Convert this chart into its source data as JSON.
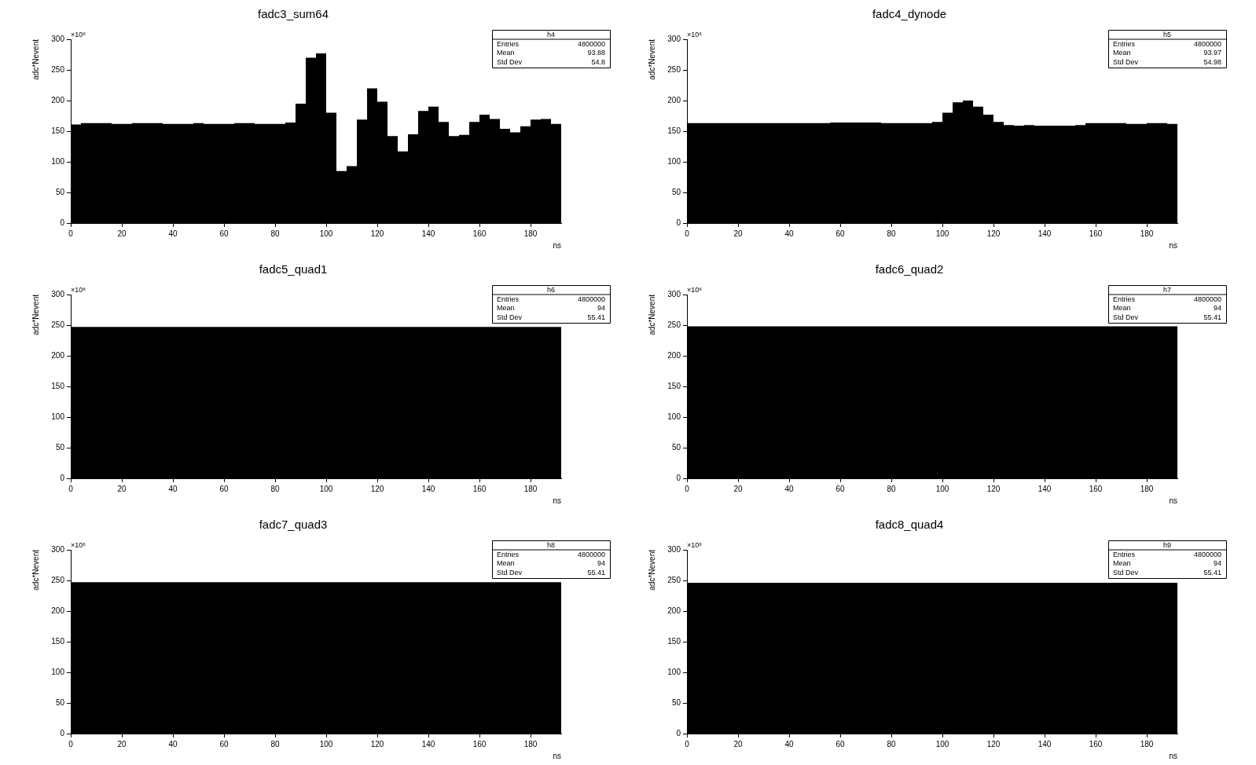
{
  "chart_data": [
    {
      "type": "histogram",
      "title": "fadc3_sum64",
      "xlabel": "ns",
      "ylabel": "adc*Nevent",
      "color": "#000000",
      "grid": false,
      "legend": false,
      "bins": [
        0,
        4,
        8,
        12,
        16,
        20,
        24,
        28,
        32,
        36,
        40,
        44,
        48,
        52,
        56,
        60,
        64,
        68,
        72,
        76,
        80,
        84,
        88,
        92,
        96,
        100,
        104,
        108,
        112,
        116,
        120,
        124,
        128,
        132,
        136,
        140,
        144,
        148,
        152,
        156,
        160,
        164,
        168,
        172,
        176,
        180,
        184,
        188,
        192
      ],
      "values": [
        161,
        163,
        163,
        163,
        162,
        162,
        163,
        163,
        163,
        162,
        162,
        162,
        163,
        162,
        162,
        162,
        163,
        163,
        162,
        162,
        162,
        164,
        195,
        270,
        277,
        180,
        85,
        93,
        169,
        220,
        198,
        142,
        117,
        145,
        183,
        190,
        165,
        142,
        144,
        165,
        177,
        170,
        154,
        148,
        158,
        169,
        170,
        162
      ],
      "xlim": [
        0,
        192
      ],
      "xticks": [
        0,
        20,
        40,
        60,
        80,
        100,
        120,
        140,
        160,
        180
      ],
      "ylim": [
        0,
        300
      ],
      "yticks": [
        0,
        50,
        100,
        150,
        200,
        250,
        300
      ],
      "annotations": [
        "×10⁶",
        "h4",
        "Entries",
        "4800000",
        "Mean",
        "93.88",
        "Std Dev",
        "54.8"
      ]
    },
    {
      "type": "histogram",
      "title": "fadc4_dynode",
      "xlabel": "ns",
      "ylabel": "adc*Nevent",
      "color": "#000000",
      "grid": false,
      "legend": false,
      "bins": [
        0,
        4,
        8,
        12,
        16,
        20,
        24,
        28,
        32,
        36,
        40,
        44,
        48,
        52,
        56,
        60,
        64,
        68,
        72,
        76,
        80,
        84,
        88,
        92,
        96,
        100,
        104,
        108,
        112,
        116,
        120,
        124,
        128,
        132,
        136,
        140,
        144,
        148,
        152,
        156,
        160,
        164,
        168,
        172,
        176,
        180,
        184,
        188,
        192
      ],
      "values": [
        163,
        163,
        163,
        163,
        163,
        163,
        163,
        163,
        163,
        163,
        163,
        163,
        163,
        163,
        164,
        164,
        164,
        164,
        164,
        163,
        163,
        163,
        163,
        163,
        165,
        180,
        197,
        200,
        190,
        177,
        165,
        160,
        159,
        160,
        159,
        159,
        159,
        159,
        160,
        163,
        163,
        163,
        163,
        162,
        162,
        163,
        163,
        162
      ],
      "xlim": [
        0,
        192
      ],
      "xticks": [
        0,
        20,
        40,
        60,
        80,
        100,
        120,
        140,
        160,
        180
      ],
      "ylim": [
        0,
        300
      ],
      "yticks": [
        0,
        50,
        100,
        150,
        200,
        250,
        300
      ],
      "annotations": [
        "×10⁶",
        "h5",
        "Entries",
        "4800000",
        "Mean",
        "93.97",
        "Std Dev",
        "54.98"
      ]
    },
    {
      "type": "histogram",
      "title": "fadc5_quad1",
      "xlabel": "ns",
      "ylabel": "adc*Nevent",
      "color": "#000000",
      "grid": false,
      "legend": false,
      "bins": [
        0,
        4,
        8,
        12,
        16,
        20,
        24,
        28,
        32,
        36,
        40,
        44,
        48,
        52,
        56,
        60,
        64,
        68,
        72,
        76,
        80,
        84,
        88,
        92,
        96,
        100,
        104,
        108,
        112,
        116,
        120,
        124,
        128,
        132,
        136,
        140,
        144,
        148,
        152,
        156,
        160,
        164,
        168,
        172,
        176,
        180,
        184,
        188,
        192
      ],
      "values": [
        247,
        247,
        247,
        247,
        247,
        247,
        247,
        247,
        247,
        247,
        247,
        247,
        247,
        247,
        247,
        247,
        247,
        247,
        247,
        247,
        247,
        247,
        247,
        247,
        247,
        247,
        247,
        247,
        247,
        247,
        247,
        247,
        247,
        247,
        247,
        247,
        247,
        247,
        247,
        247,
        247,
        247,
        247,
        247,
        247,
        247,
        247,
        247
      ],
      "xlim": [
        0,
        192
      ],
      "xticks": [
        0,
        20,
        40,
        60,
        80,
        100,
        120,
        140,
        160,
        180
      ],
      "ylim": [
        0,
        300
      ],
      "yticks": [
        0,
        50,
        100,
        150,
        200,
        250,
        300
      ],
      "annotations": [
        "×10⁶",
        "h6",
        "Entries",
        "4800000",
        "Mean",
        "94",
        "Std Dev",
        "55.41"
      ]
    },
    {
      "type": "histogram",
      "title": "fadc6_quad2",
      "xlabel": "ns",
      "ylabel": "adc*Nevent",
      "color": "#000000",
      "grid": false,
      "legend": false,
      "bins": [
        0,
        4,
        8,
        12,
        16,
        20,
        24,
        28,
        32,
        36,
        40,
        44,
        48,
        52,
        56,
        60,
        64,
        68,
        72,
        76,
        80,
        84,
        88,
        92,
        96,
        100,
        104,
        108,
        112,
        116,
        120,
        124,
        128,
        132,
        136,
        140,
        144,
        148,
        152,
        156,
        160,
        164,
        168,
        172,
        176,
        180,
        184,
        188,
        192
      ],
      "values": [
        248,
        248,
        248,
        248,
        248,
        248,
        248,
        248,
        248,
        248,
        248,
        248,
        248,
        248,
        248,
        248,
        248,
        248,
        248,
        248,
        248,
        248,
        248,
        248,
        248,
        248,
        248,
        248,
        248,
        248,
        248,
        248,
        248,
        248,
        248,
        248,
        248,
        248,
        248,
        248,
        248,
        248,
        248,
        248,
        248,
        248,
        248,
        248
      ],
      "xlim": [
        0,
        192
      ],
      "xticks": [
        0,
        20,
        40,
        60,
        80,
        100,
        120,
        140,
        160,
        180
      ],
      "ylim": [
        0,
        300
      ],
      "yticks": [
        0,
        50,
        100,
        150,
        200,
        250,
        300
      ],
      "annotations": [
        "×10⁶",
        "h7",
        "Entries",
        "4800000",
        "Mean",
        "94",
        "Std Dev",
        "55.41"
      ]
    },
    {
      "type": "histogram",
      "title": "fadc7_quad3",
      "xlabel": "ns",
      "ylabel": "adc*Nevent",
      "color": "#000000",
      "grid": false,
      "legend": false,
      "bins": [
        0,
        4,
        8,
        12,
        16,
        20,
        24,
        28,
        32,
        36,
        40,
        44,
        48,
        52,
        56,
        60,
        64,
        68,
        72,
        76,
        80,
        84,
        88,
        92,
        96,
        100,
        104,
        108,
        112,
        116,
        120,
        124,
        128,
        132,
        136,
        140,
        144,
        148,
        152,
        156,
        160,
        164,
        168,
        172,
        176,
        180,
        184,
        188,
        192
      ],
      "values": [
        247,
        247,
        247,
        247,
        247,
        247,
        247,
        247,
        247,
        247,
        247,
        247,
        247,
        247,
        247,
        247,
        247,
        247,
        247,
        247,
        247,
        247,
        247,
        247,
        247,
        247,
        247,
        247,
        247,
        247,
        247,
        247,
        247,
        247,
        247,
        247,
        247,
        247,
        247,
        247,
        247,
        247,
        247,
        247,
        247,
        247,
        247,
        247
      ],
      "xlim": [
        0,
        192
      ],
      "xticks": [
        0,
        20,
        40,
        60,
        80,
        100,
        120,
        140,
        160,
        180
      ],
      "ylim": [
        0,
        300
      ],
      "yticks": [
        0,
        50,
        100,
        150,
        200,
        250,
        300
      ],
      "annotations": [
        "×10⁶",
        "h8",
        "Entries",
        "4800000",
        "Mean",
        "94",
        "Std Dev",
        "55.41"
      ]
    },
    {
      "type": "histogram",
      "title": "fadc8_quad4",
      "xlabel": "ns",
      "ylabel": "adc*Nevent",
      "color": "#000000",
      "grid": false,
      "legend": false,
      "bins": [
        0,
        4,
        8,
        12,
        16,
        20,
        24,
        28,
        32,
        36,
        40,
        44,
        48,
        52,
        56,
        60,
        64,
        68,
        72,
        76,
        80,
        84,
        88,
        92,
        96,
        100,
        104,
        108,
        112,
        116,
        120,
        124,
        128,
        132,
        136,
        140,
        144,
        148,
        152,
        156,
        160,
        164,
        168,
        172,
        176,
        180,
        184,
        188,
        192
      ],
      "values": [
        246,
        246,
        246,
        246,
        246,
        246,
        246,
        246,
        246,
        246,
        246,
        246,
        246,
        246,
        246,
        246,
        246,
        246,
        246,
        246,
        246,
        246,
        246,
        246,
        246,
        246,
        246,
        246,
        246,
        246,
        246,
        246,
        246,
        246,
        246,
        246,
        246,
        246,
        246,
        246,
        246,
        246,
        246,
        246,
        246,
        246,
        246,
        246
      ],
      "xlim": [
        0,
        192
      ],
      "xticks": [
        0,
        20,
        40,
        60,
        80,
        100,
        120,
        140,
        160,
        180
      ],
      "ylim": [
        0,
        300
      ],
      "yticks": [
        0,
        50,
        100,
        150,
        200,
        250,
        300
      ],
      "annotations": [
        "×10⁶",
        "h9",
        "Entries",
        "4800000",
        "Mean",
        "94",
        "Std Dev",
        "55.41"
      ]
    }
  ]
}
